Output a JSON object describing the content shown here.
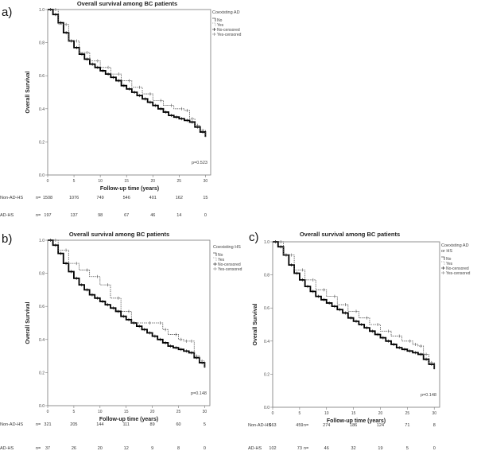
{
  "chart_data": [
    {
      "type": "line",
      "panel_label": "a)",
      "title": "Overall survival among BC patients",
      "xlabel": "Follow-up time (years)",
      "ylabel": "Overall Survival",
      "xlim": [
        0,
        31
      ],
      "ylim": [
        0,
        1.0
      ],
      "xticks": [
        "0",
        "5",
        "10",
        "15",
        "20",
        "25",
        "30"
      ],
      "yticks": [
        "0.0",
        "0.2",
        "0.4",
        "0.6",
        "0.8",
        "1.0"
      ],
      "legend_title": [
        "Coexisting AD"
      ],
      "legend_entries": [
        "No",
        "Yes",
        "No-censored",
        "Yes-censored"
      ],
      "p_value": "p=0.523",
      "series": [
        {
          "name": "No",
          "x": [
            0,
            1,
            2,
            3,
            4,
            5,
            6,
            7,
            8,
            9,
            10,
            11,
            12,
            13,
            14,
            15,
            16,
            17,
            18,
            19,
            20,
            21,
            22,
            23,
            24,
            25,
            26,
            27,
            28,
            29,
            30
          ],
          "y": [
            1.0,
            0.97,
            0.92,
            0.86,
            0.81,
            0.77,
            0.73,
            0.7,
            0.67,
            0.65,
            0.63,
            0.61,
            0.59,
            0.57,
            0.54,
            0.52,
            0.5,
            0.48,
            0.46,
            0.44,
            0.42,
            0.4,
            0.38,
            0.36,
            0.35,
            0.34,
            0.33,
            0.32,
            0.29,
            0.26,
            0.23
          ]
        },
        {
          "name": "Yes",
          "x": [
            0,
            2,
            4,
            6,
            8,
            10,
            12,
            14,
            16,
            18,
            20,
            22,
            24,
            26,
            27,
            28,
            29,
            30
          ],
          "y": [
            1.0,
            0.91,
            0.81,
            0.74,
            0.69,
            0.65,
            0.61,
            0.57,
            0.53,
            0.49,
            0.45,
            0.42,
            0.4,
            0.39,
            0.34,
            0.3,
            0.27,
            0.23
          ]
        }
      ],
      "risk_table": {
        "rows": [
          {
            "label": "Non-AD-HS",
            "n_label": "n=",
            "values": [
              "1508",
              "1076",
              "749",
              "546",
              "401",
              "162",
              "15"
            ]
          },
          {
            "label": "AD-HS",
            "n_label": "n=",
            "values": [
              "197",
              "137",
              "98",
              "67",
              "46",
              "14",
              "0"
            ]
          }
        ]
      }
    },
    {
      "type": "line",
      "panel_label": "b)",
      "title": "Overall survival among BC patients",
      "xlabel": "Follow-up time (years)",
      "ylabel": "Overall Survival",
      "xlim": [
        0,
        31
      ],
      "ylim": [
        0,
        1.0
      ],
      "xticks": [
        "0",
        "5",
        "10",
        "15",
        "20",
        "25",
        "30"
      ],
      "yticks": [
        "0.0",
        "0.2",
        "0.4",
        "0.6",
        "0.8",
        "1.0"
      ],
      "legend_title": [
        "Coexisting HS"
      ],
      "legend_entries": [
        "No",
        "Yes",
        "No-censored",
        "Yes-censored"
      ],
      "p_value": "p=0.148",
      "series": [
        {
          "name": "No",
          "x": [
            0,
            1,
            2,
            3,
            4,
            5,
            6,
            7,
            8,
            9,
            10,
            11,
            12,
            13,
            14,
            15,
            16,
            17,
            18,
            19,
            20,
            21,
            22,
            23,
            24,
            25,
            26,
            27,
            28,
            29,
            30
          ],
          "y": [
            1.0,
            0.97,
            0.92,
            0.86,
            0.81,
            0.77,
            0.73,
            0.7,
            0.67,
            0.65,
            0.63,
            0.61,
            0.59,
            0.57,
            0.54,
            0.52,
            0.5,
            0.48,
            0.46,
            0.44,
            0.42,
            0.4,
            0.38,
            0.36,
            0.35,
            0.34,
            0.33,
            0.32,
            0.29,
            0.26,
            0.23
          ]
        },
        {
          "name": "Yes",
          "x": [
            0,
            2,
            4,
            6,
            8,
            10,
            12,
            14,
            16,
            20,
            22,
            23,
            25,
            26,
            27,
            28,
            29,
            30
          ],
          "y": [
            1.0,
            0.94,
            0.86,
            0.82,
            0.78,
            0.73,
            0.65,
            0.57,
            0.5,
            0.5,
            0.46,
            0.43,
            0.4,
            0.39,
            0.39,
            0.3,
            0.27,
            0.23
          ]
        }
      ],
      "risk_table": {
        "rows": [
          {
            "label": "Non-AD-HS",
            "n_label": "n=",
            "values": [
              "321",
              "205",
              "144",
              "111",
              "89",
              "60",
              "5"
            ]
          },
          {
            "label": "AD-HS",
            "n_label": "n=",
            "values": [
              "37",
              "26",
              "20",
              "12",
              "9",
              "8",
              "0"
            ]
          }
        ]
      }
    },
    {
      "type": "line",
      "panel_label": "c)",
      "title": "Overall survival among BC patients",
      "xlabel": "Follow-up time (years)",
      "ylabel": "Overall Survival",
      "xlim": [
        0,
        31
      ],
      "ylim": [
        0,
        1.0
      ],
      "xticks": [
        "0",
        "5",
        "10",
        "15",
        "20",
        "25",
        "30"
      ],
      "yticks": [
        "0.0",
        "0.2",
        "0.4",
        "0.6",
        "0.8",
        "1.0"
      ],
      "legend_title": [
        "Coexisting AD",
        "or HS"
      ],
      "legend_entries": [
        "No",
        "Yes",
        "No-censored",
        "Yes-censored"
      ],
      "p_value": "p=0.148",
      "series": [
        {
          "name": "No",
          "x": [
            0,
            1,
            2,
            3,
            4,
            5,
            6,
            7,
            8,
            9,
            10,
            11,
            12,
            13,
            14,
            15,
            16,
            17,
            18,
            19,
            20,
            21,
            22,
            23,
            24,
            25,
            26,
            27,
            28,
            29,
            30
          ],
          "y": [
            1.0,
            0.97,
            0.92,
            0.86,
            0.81,
            0.77,
            0.73,
            0.7,
            0.67,
            0.65,
            0.63,
            0.61,
            0.59,
            0.57,
            0.54,
            0.52,
            0.5,
            0.48,
            0.46,
            0.44,
            0.42,
            0.4,
            0.38,
            0.36,
            0.35,
            0.34,
            0.33,
            0.32,
            0.29,
            0.26,
            0.23
          ]
        },
        {
          "name": "Yes",
          "x": [
            0,
            2,
            4,
            6,
            8,
            10,
            12,
            14,
            16,
            18,
            20,
            22,
            24,
            26,
            27,
            28,
            29,
            30
          ],
          "y": [
            1.0,
            0.92,
            0.83,
            0.77,
            0.71,
            0.67,
            0.62,
            0.58,
            0.54,
            0.5,
            0.46,
            0.43,
            0.4,
            0.38,
            0.37,
            0.32,
            0.27,
            0.23
          ]
        }
      ],
      "risk_table": {
        "rows": [
          {
            "label": "Non-AD-HS",
            "n_label": "n=",
            "values": [
              "663",
              "459",
              "274",
              "186",
              "124",
              "71",
              "8"
            ]
          },
          {
            "label": "AD-HS",
            "n_label": "n=",
            "values": [
              "102",
              "73",
              "46",
              "32",
              "19",
              "5",
              "0"
            ]
          }
        ]
      }
    }
  ]
}
